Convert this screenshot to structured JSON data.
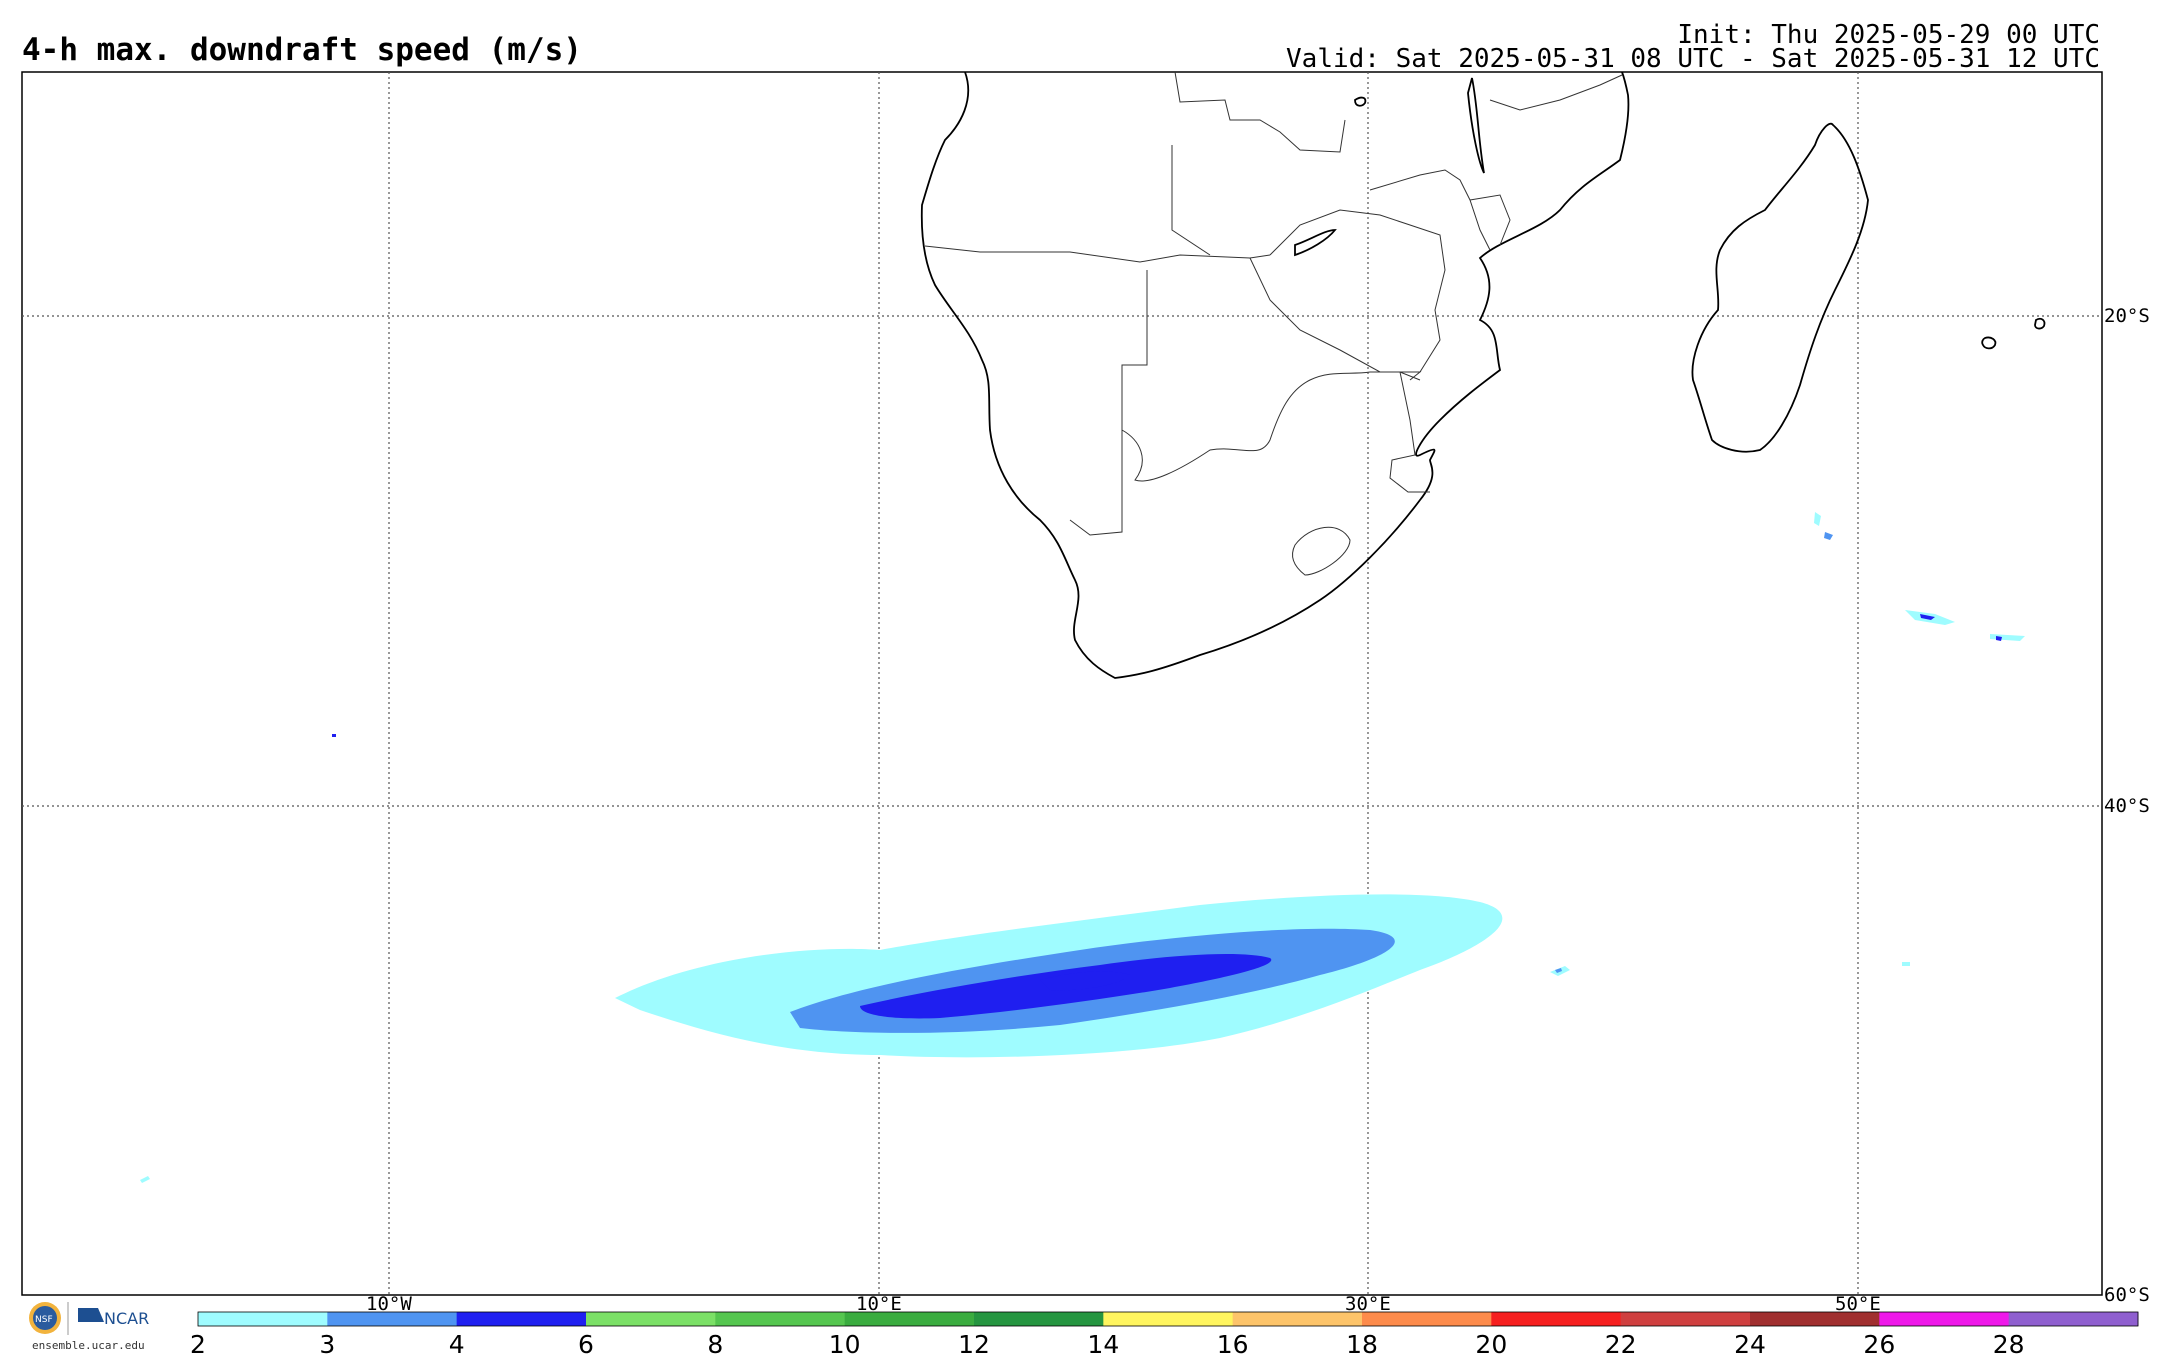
{
  "header": {
    "title": "4-h max. downdraft speed (m/s)",
    "init": "Init: Thu 2025-05-29 00 UTC",
    "valid": "Valid: Sat 2025-05-31 08 UTC - Sat 2025-05-31 12 UTC"
  },
  "axes": {
    "longitude_labels": [
      "10°W",
      "10°E",
      "30°E",
      "50°E"
    ],
    "latitude_labels": [
      "20°S",
      "40°S",
      "60°S"
    ]
  },
  "colorbar": {
    "ticks": [
      "2",
      "3",
      "4",
      "6",
      "8",
      "10",
      "12",
      "14",
      "16",
      "18",
      "20",
      "22",
      "24",
      "26",
      "28"
    ],
    "colors": [
      "#9ffcff",
      "#4f94f1",
      "#1f1ff0",
      "#7be066",
      "#55c64f",
      "#3aac3f",
      "#259540",
      "#fff55f",
      "#fdc46a",
      "#fd8b4b",
      "#f61f1f",
      "#cf3f3f",
      "#a02f2f",
      "#ee18e9",
      "#8f5fcf"
    ]
  },
  "logos": {
    "nsf": "NSF",
    "ncar": "NCAR",
    "site": "ensemble.ucar.edu"
  }
}
